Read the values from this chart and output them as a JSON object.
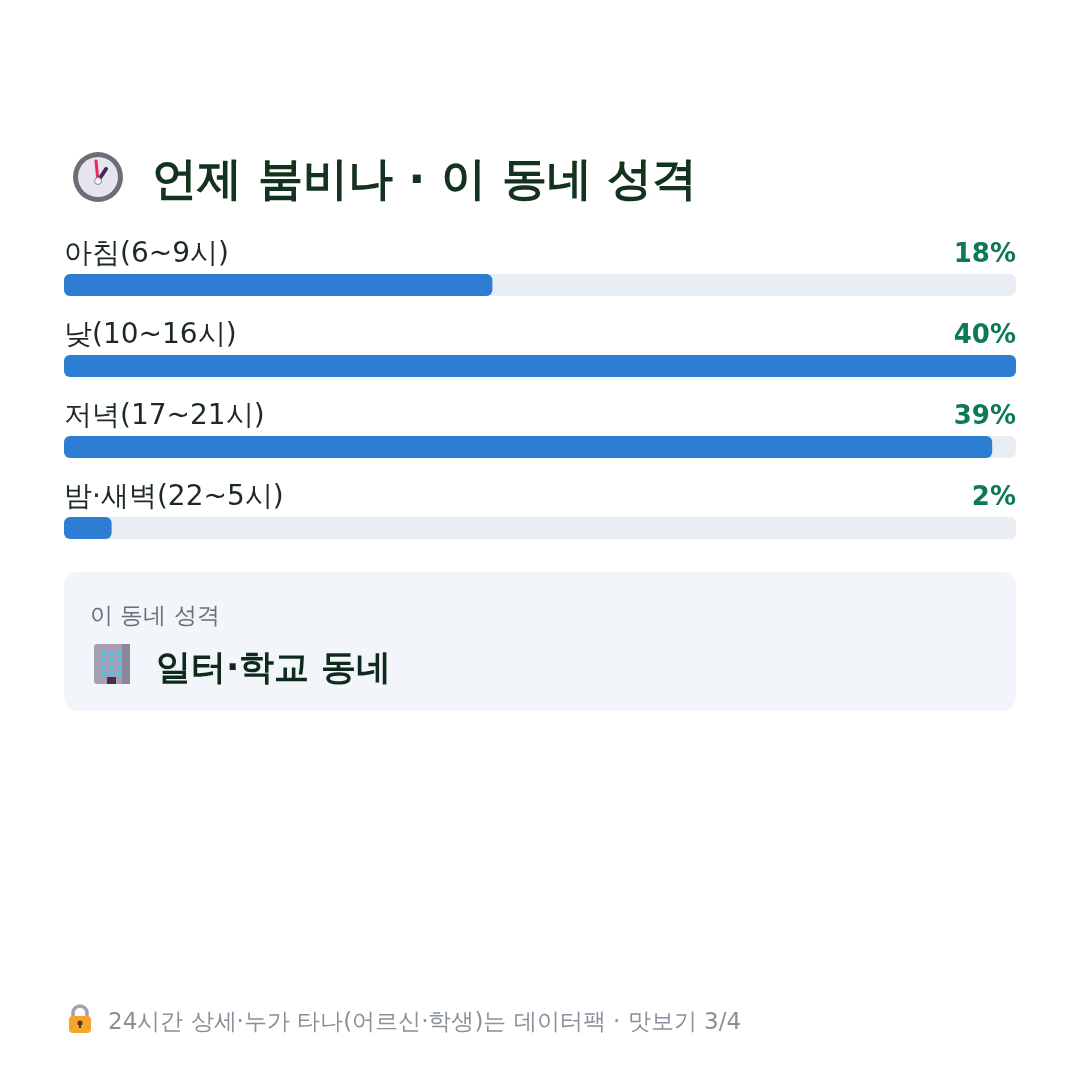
{
  "chart_data": {
    "type": "bar",
    "orientation": "horizontal",
    "title": "언제 붐비나 · 이 동네 성격",
    "categories": [
      "아침(6~9시)",
      "낮(10~16시)",
      "저녁(17~21시)",
      "밤·새벽(22~5시)"
    ],
    "values": [
      18,
      40,
      39,
      2
    ],
    "value_labels": [
      "18%",
      "40%",
      "39%",
      "2%"
    ],
    "color": "#2d7dd2",
    "annotations": [
      "이 동네 성격",
      "일터·학교 동네",
      "24시간 상세·누가 타나(어르신·학생)는 데이터팩 · 맛보기 3/4"
    ]
  }
}
